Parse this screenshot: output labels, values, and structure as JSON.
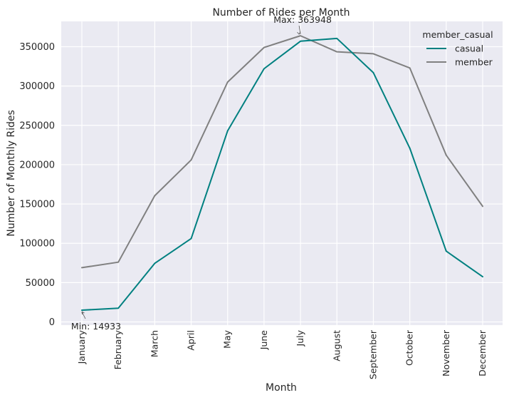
{
  "chart_data": {
    "type": "line",
    "title": "Number of Rides per Month",
    "xlabel": "Month",
    "ylabel": "Number of Monthly Rides",
    "categories": [
      "January",
      "February",
      "March",
      "April",
      "May",
      "June",
      "July",
      "August",
      "September",
      "October",
      "November",
      "December"
    ],
    "ylim": [
      0,
      380000
    ],
    "yticks": [
      0,
      50000,
      100000,
      150000,
      200000,
      250000,
      300000,
      350000
    ],
    "ytick_labels": [
      "0",
      "50000",
      "100000",
      "150000",
      "200000",
      "250000",
      "300000",
      "350000"
    ],
    "grid": true,
    "legend": {
      "title": "member_casual",
      "placement": "top-right"
    },
    "series": [
      {
        "name": "casual",
        "color": "#008080",
        "values": [
          14933,
          17500,
          74500,
          106000,
          243000,
          322000,
          357000,
          360500,
          317000,
          221000,
          90000,
          57500
        ]
      },
      {
        "name": "member",
        "color": "#808080",
        "values": [
          69000,
          76000,
          160500,
          206000,
          305000,
          349000,
          363948,
          343500,
          341000,
          323000,
          212000,
          147000
        ]
      }
    ],
    "annotations": [
      {
        "text": "Max: 363948",
        "category": "July",
        "value": 363948,
        "placement": "above"
      },
      {
        "text": "Min: 14933",
        "category": "January",
        "value": 14933,
        "placement": "below"
      }
    ]
  }
}
